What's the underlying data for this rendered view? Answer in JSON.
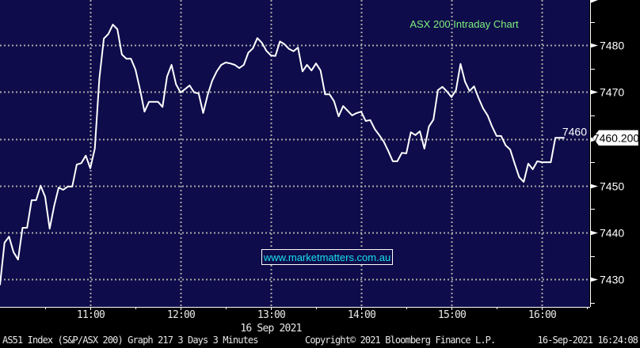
{
  "chart_data": {
    "type": "line",
    "title": "ASX 200 Intraday Chart",
    "watermark": "www.marketmatters.com.au",
    "xlabel": "16 Sep 2021",
    "ylabel": "",
    "x_ticks": [
      "11:00",
      "12:00",
      "13:00",
      "14:00",
      "15:00",
      "16:00"
    ],
    "y_ticks": [
      7430,
      7440,
      7450,
      7460,
      7470,
      7480
    ],
    "ylim": [
      7424,
      7490
    ],
    "xlim": [
      "10:00",
      "16:31"
    ],
    "y_axis_side": "right",
    "grid": true,
    "last_value_label": "7460.200",
    "interval_minutes": 3,
    "start_time": "10:00",
    "series": [
      {
        "color": "#ffffff",
        "values": [
          7428.8,
          7437.8,
          7439.1,
          7435.8,
          7434.2,
          7441.0,
          7441.0,
          7446.9,
          7446.9,
          7450.0,
          7447.6,
          7440.8,
          7445.7,
          7449.6,
          7449.1,
          7449.8,
          7449.8,
          7454.5,
          7454.8,
          7456.4,
          7453.7,
          7457.9,
          7472.8,
          7481.4,
          7482.4,
          7484.4,
          7483.4,
          7478.0,
          7477.1,
          7477.1,
          7474.8,
          7470.6,
          7465.8,
          7467.9,
          7467.9,
          7467.9,
          7466.8,
          7473.3,
          7475.8,
          7471.6,
          7469.9,
          7470.6,
          7471.4,
          7469.9,
          7469.7,
          7465.5,
          7469.4,
          7472.4,
          7474.4,
          7475.8,
          7476.3,
          7476.1,
          7475.8,
          7475.1,
          7475.8,
          7478.4,
          7479.3,
          7481.5,
          7480.5,
          7478.8,
          7477.8,
          7477.7,
          7480.8,
          7480.2,
          7479.2,
          7478.7,
          7479.5,
          7474.4,
          7475.8,
          7474.6,
          7476.1,
          7474.6,
          7469.5,
          7469.5,
          7468.0,
          7464.8,
          7467.0,
          7466.0,
          7465.0,
          7465.5,
          7465.8,
          7463.8,
          7464.0,
          7462.1,
          7460.8,
          7459.4,
          7457.4,
          7455.2,
          7455.2,
          7457.0,
          7456.9,
          7461.4,
          7460.8,
          7461.6,
          7457.9,
          7462.6,
          7464.1,
          7470.4,
          7471.1,
          7470.1,
          7468.9,
          7470.4,
          7476.0,
          7472.2,
          7470.2,
          7471.2,
          7468.7,
          7466.5,
          7465.0,
          7462.6,
          7460.6,
          7460.6,
          7458.6,
          7457.7,
          7454.7,
          7451.8,
          7450.8,
          7454.7,
          7453.5,
          7455.2,
          7455.0,
          7455.0,
          7455.0,
          7460.2,
          7460.2,
          7460.2
        ]
      }
    ]
  },
  "colors": {
    "plot_bg": "#0e0c4a",
    "grid": "#a8a8a8",
    "title": "#7df07d",
    "watermark": "#19e0f0"
  },
  "footer": {
    "security": "AS51 Index (S&P/ASX 200) Graph 217 3 Days 3 Minutes",
    "copyright": "Copyright© 2021 Bloomberg Finance L.P.",
    "timestamp": "16-Sep-2021 16:24:08"
  }
}
